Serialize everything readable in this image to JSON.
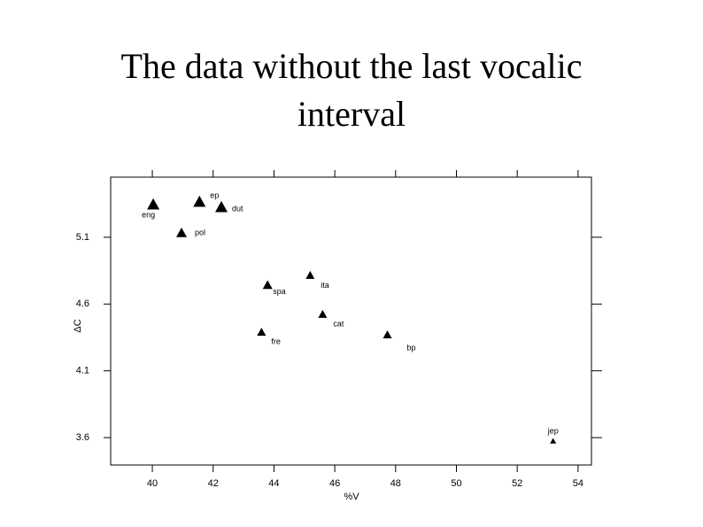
{
  "chart_data": {
    "type": "scatter",
    "title": "The data without the last vocalic interval",
    "x_label": "%V",
    "y_label": "ΔC",
    "points": [
      {
        "label": "eng",
        "x": 40.03,
        "y": 5.345
      },
      {
        "label": "ep",
        "x": 41.55,
        "y": 5.365
      },
      {
        "label": "dut",
        "x": 42.27,
        "y": 5.325
      },
      {
        "label": "pol",
        "x": 40.96,
        "y": 5.133
      },
      {
        "label": "spa",
        "x": 43.79,
        "y": 4.742
      },
      {
        "label": "ita",
        "x": 45.19,
        "y": 4.815
      },
      {
        "label": "cat",
        "x": 45.6,
        "y": 4.523
      },
      {
        "label": "fre",
        "x": 43.59,
        "y": 4.39
      },
      {
        "label": "bp",
        "x": 47.73,
        "y": 4.37
      },
      {
        "label": "jep",
        "x": 53.18,
        "y": 3.574
      }
    ],
    "color": "#000000",
    "xlim": [
      38.63,
      54.44
    ],
    "ylim": [
      3.395,
      5.55
    ],
    "xticks": [
      40,
      42,
      44,
      46,
      48,
      50,
      52,
      54
    ],
    "yticks": [
      {
        "value": 5.1,
        "label": "5.1"
      },
      {
        "value": 4.6,
        "label": "4.6"
      },
      {
        "value": 4.1,
        "label": "4.1"
      },
      {
        "value": 3.6,
        "label": "3.6"
      }
    ]
  }
}
